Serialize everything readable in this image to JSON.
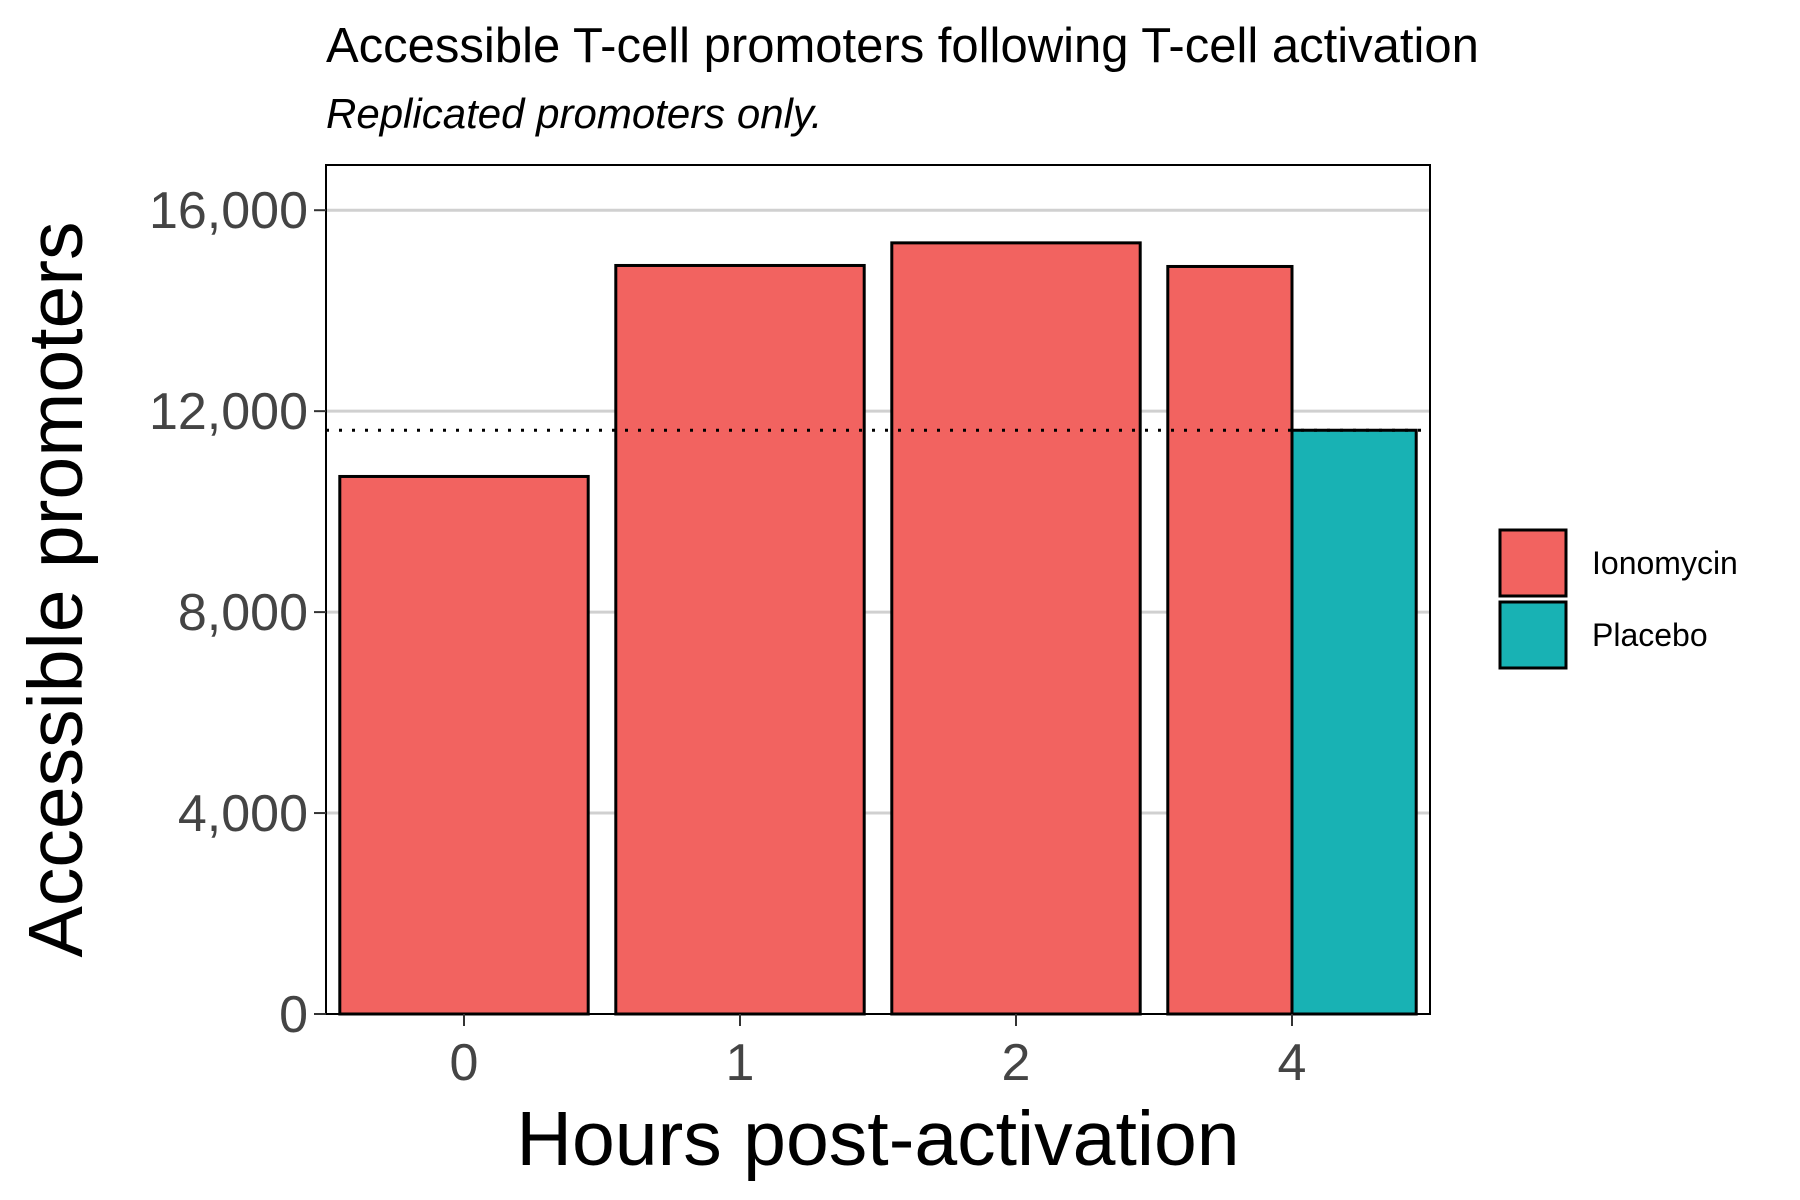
{
  "chart_data": {
    "type": "bar",
    "title": "Accessible T-cell promoters following T-cell activation",
    "subtitle": "Replicated promoters only.",
    "xlabel": "Hours post-activation",
    "ylabel": "Accessible promoters",
    "categories": [
      "0",
      "1",
      "2",
      "4"
    ],
    "y_ticks": [
      "0",
      "4,000",
      "8,000",
      "12,000",
      "16,000"
    ],
    "y_tick_values": [
      0,
      4000,
      8000,
      12000,
      16000
    ],
    "ylim": [
      0,
      16900
    ],
    "grid": true,
    "legend_position": "right",
    "series": [
      {
        "name": "Ionomycin",
        "color": "#F26360",
        "points": [
          {
            "x": "0",
            "y": 10700
          },
          {
            "x": "1",
            "y": 14900
          },
          {
            "x": "2",
            "y": 15350
          },
          {
            "x": "4",
            "y": 14880
          }
        ]
      },
      {
        "name": "Placebo",
        "color": "#18B2B4",
        "points": [
          {
            "x": "4",
            "y": 11620
          }
        ]
      }
    ],
    "reference_line": {
      "y": 11620,
      "style": "dotted"
    }
  }
}
